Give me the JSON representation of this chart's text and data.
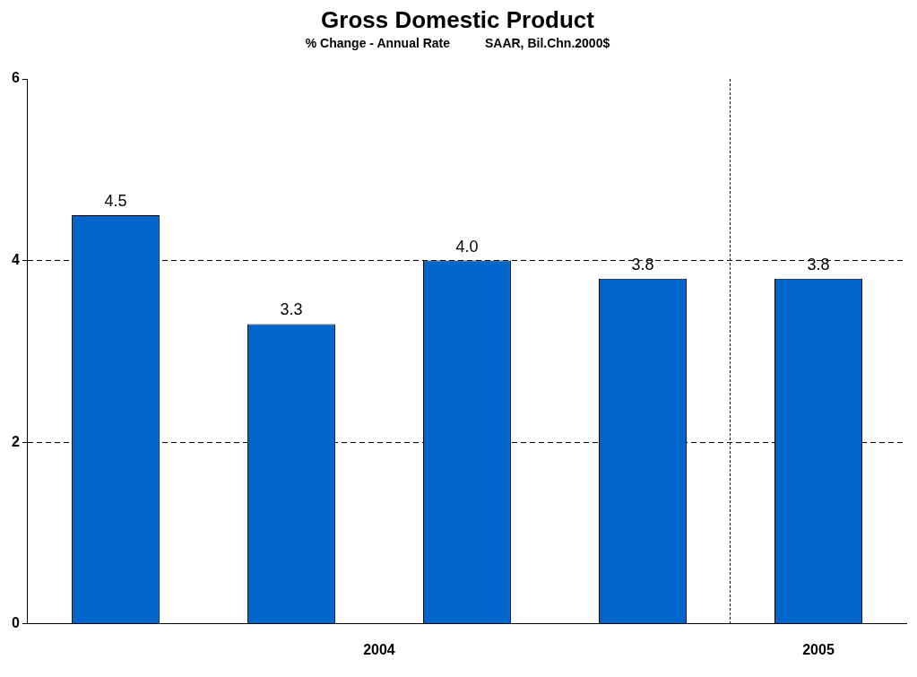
{
  "chart_data": {
    "type": "bar",
    "title": "Gross Domestic Product",
    "subtitle": "% Change - Annual Rate          SAAR, Bil.Chn.2000$",
    "categories": [
      null,
      null,
      null,
      null,
      "2005"
    ],
    "values": [
      4.5,
      3.3,
      4.0,
      3.8,
      3.8
    ],
    "color": "#0066cc",
    "value_labels": [
      "4.5",
      "3.3",
      "4.0",
      "3.8",
      "3.8"
    ],
    "ylim": [
      0,
      6
    ],
    "yticks": [
      0,
      2,
      4,
      6
    ],
    "grid": "y",
    "annotations": [
      "2004"
    ]
  }
}
